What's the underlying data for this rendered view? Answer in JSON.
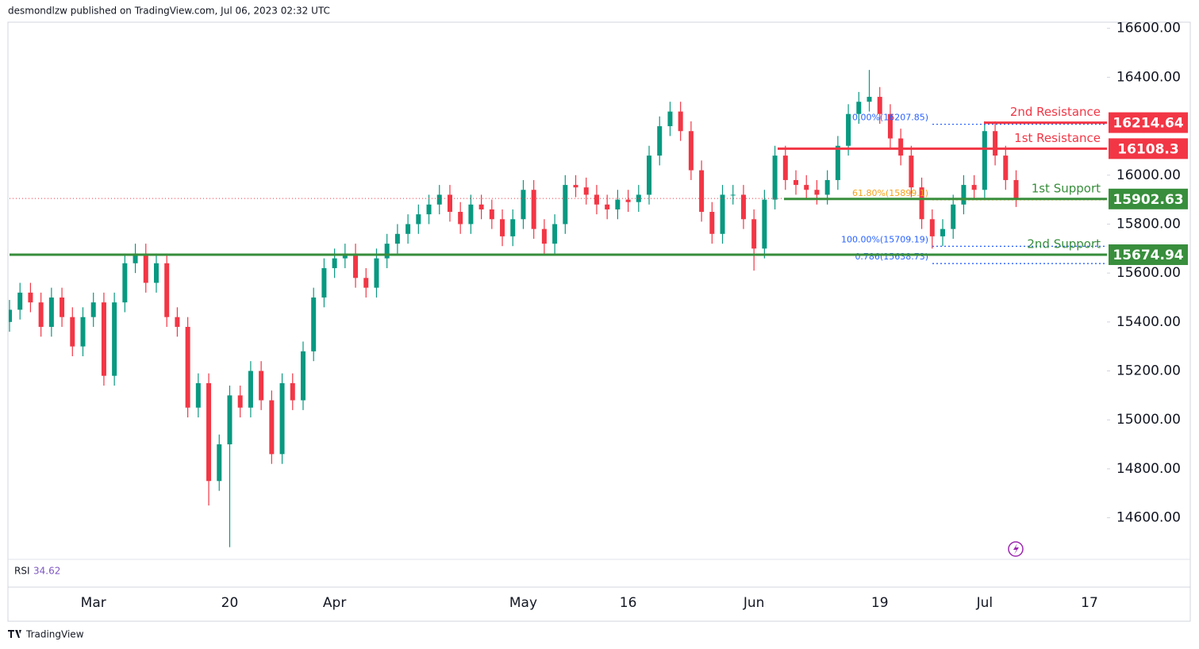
{
  "chart_data": {
    "type": "candlestick",
    "header": "desmondlzw published on TradingView.com, Jul 06, 2023 02:32 UTC",
    "footer": "TradingView",
    "rsi_label": "RSI",
    "rsi_value": 34.62,
    "up_color": "#089981",
    "down_color": "#f23645",
    "ylim": [
      14430,
      16625
    ],
    "yticks": [
      {
        "value": 16600,
        "label": "16600.00"
      },
      {
        "value": 16400,
        "label": "16400.00"
      },
      {
        "value": 16000,
        "label": "16000.00"
      },
      {
        "value": 15800,
        "label": "15800.00"
      },
      {
        "value": 15600,
        "label": "15600.00"
      },
      {
        "value": 15400,
        "label": "15400.00"
      },
      {
        "value": 15200,
        "label": "15200.00"
      },
      {
        "value": 15000,
        "label": "15000.00"
      },
      {
        "value": 14800,
        "label": "14800.00"
      },
      {
        "value": 14600,
        "label": "14600.00"
      }
    ],
    "categories": [
      null,
      null,
      null,
      null,
      null,
      null,
      null,
      null,
      "Mar",
      null,
      null,
      null,
      null,
      null,
      null,
      null,
      null,
      null,
      null,
      null,
      null,
      "20",
      null,
      null,
      null,
      null,
      null,
      null,
      null,
      null,
      null,
      "Apr",
      null,
      null,
      null,
      null,
      null,
      null,
      null,
      null,
      null,
      null,
      null,
      null,
      null,
      null,
      null,
      null,
      null,
      "May",
      null,
      null,
      null,
      null,
      null,
      null,
      null,
      null,
      null,
      "16",
      null,
      null,
      null,
      null,
      null,
      null,
      null,
      null,
      null,
      null,
      null,
      "Jun",
      null,
      null,
      null,
      null,
      null,
      null,
      null,
      null,
      null,
      null,
      null,
      "19",
      null,
      null,
      null,
      null,
      null,
      null,
      null,
      null,
      null,
      "Jul",
      null,
      null,
      null,
      null,
      null,
      null,
      null,
      null,
      null,
      "17"
    ],
    "series": [
      {
        "open": [
          15400,
          15450,
          15520,
          15480,
          15380,
          15500,
          15420,
          15300,
          15420,
          15480,
          15180,
          15480,
          15640,
          15680,
          15560,
          15640,
          15420,
          15380,
          15050,
          15150,
          14750,
          14900,
          15100,
          15050,
          15200,
          15080,
          14860,
          15150,
          15080,
          15280,
          15500,
          15620,
          15660,
          15680,
          15580,
          15540,
          15660,
          15720,
          15760,
          15800,
          15840,
          15880,
          15920,
          15850,
          15800,
          15880,
          15860,
          15820,
          15750,
          15820,
          15940,
          15780,
          15720,
          15800,
          15960,
          15950,
          15920,
          15880,
          15860,
          15900,
          15890,
          15920,
          16080,
          16200,
          16260,
          16180,
          16020,
          15850,
          15760,
          15920,
          15920,
          15820,
          15700,
          15900,
          16080,
          15980,
          15960,
          15940,
          15920,
          15980,
          16120,
          16250,
          16300,
          16320,
          16250,
          16150,
          16080,
          15950,
          15820,
          15750,
          15780,
          15880,
          15960,
          15940,
          16180,
          16080,
          15980,
          null,
          null,
          null,
          null,
          null,
          null,
          null
        ],
        "high": [
          15490,
          15560,
          15560,
          15520,
          15540,
          15540,
          15460,
          15460,
          15520,
          15520,
          15520,
          15680,
          15720,
          15720,
          15680,
          15680,
          15460,
          15420,
          15190,
          15190,
          14940,
          15140,
          15140,
          15240,
          15240,
          15120,
          15190,
          15190,
          15320,
          15540,
          15660,
          15700,
          15720,
          15720,
          15620,
          15700,
          15760,
          15800,
          15840,
          15880,
          15920,
          15960,
          15960,
          15890,
          15920,
          15920,
          15900,
          15860,
          15860,
          15980,
          15980,
          15820,
          15840,
          16000,
          16000,
          15990,
          15960,
          15920,
          15940,
          15940,
          15960,
          16120,
          16240,
          16300,
          16300,
          16220,
          16060,
          15890,
          15960,
          15960,
          15960,
          15860,
          15940,
          16120,
          16120,
          16020,
          16000,
          15980,
          16020,
          16160,
          16290,
          16340,
          16430,
          16360,
          16290,
          16190,
          16120,
          15990,
          15860,
          15820,
          15920,
          16000,
          16000,
          16220,
          16220,
          16120,
          16020,
          null,
          null,
          null,
          null,
          null,
          null,
          null
        ],
        "low": [
          15360,
          15410,
          15440,
          15340,
          15340,
          15380,
          15260,
          15260,
          15380,
          15140,
          15140,
          15440,
          15600,
          15520,
          15520,
          15380,
          15340,
          15010,
          15010,
          14650,
          14710,
          14480,
          15010,
          15010,
          15040,
          14820,
          14820,
          15040,
          15040,
          15240,
          15460,
          15580,
          15620,
          15540,
          15500,
          15500,
          15620,
          15680,
          15720,
          15760,
          15800,
          15840,
          15810,
          15760,
          15760,
          15820,
          15780,
          15710,
          15710,
          15780,
          15740,
          15680,
          15680,
          15760,
          15910,
          15880,
          15840,
          15820,
          15820,
          15850,
          15850,
          15880,
          16040,
          16160,
          16140,
          15980,
          15810,
          15720,
          15720,
          15880,
          15780,
          15610,
          15660,
          15860,
          15940,
          15920,
          15900,
          15880,
          15880,
          15940,
          16080,
          16210,
          16260,
          16210,
          16110,
          16040,
          15910,
          15780,
          15700,
          15710,
          15740,
          15840,
          15900,
          15900,
          16040,
          15940,
          15870,
          null,
          null,
          null,
          null,
          null,
          null,
          null
        ],
        "close": [
          15450,
          15520,
          15480,
          15380,
          15500,
          15420,
          15300,
          15420,
          15480,
          15180,
          15480,
          15640,
          15680,
          15560,
          15640,
          15420,
          15380,
          15050,
          15150,
          14750,
          14900,
          15100,
          15050,
          15200,
          15080,
          14860,
          15150,
          15080,
          15280,
          15500,
          15620,
          15660,
          15680,
          15580,
          15540,
          15660,
          15720,
          15760,
          15800,
          15840,
          15880,
          15920,
          15850,
          15800,
          15880,
          15860,
          15820,
          15750,
          15820,
          15940,
          15780,
          15720,
          15800,
          15960,
          15950,
          15920,
          15880,
          15860,
          15900,
          15890,
          15920,
          16080,
          16200,
          16260,
          16180,
          16020,
          15850,
          15760,
          15920,
          15920,
          15820,
          15700,
          15900,
          16080,
          15980,
          15960,
          15940,
          15920,
          15980,
          16120,
          16250,
          16300,
          16320,
          16250,
          16150,
          16080,
          15950,
          15820,
          15750,
          15780,
          15880,
          15960,
          15940,
          16180,
          16080,
          15980,
          15905,
          null,
          null,
          null,
          null,
          null,
          null,
          null
        ]
      }
    ],
    "levels": [
      {
        "name": "2nd Resistance",
        "value": 16214.64,
        "color": "#f23645"
      },
      {
        "name": "1st Resistance",
        "value": 16108.3,
        "color": "#f23645"
      },
      {
        "name": "1st Support",
        "value": 15902.63,
        "color": "#388e3c"
      },
      {
        "name": "2nd Support",
        "value": 15674.94,
        "color": "#388e3c"
      }
    ],
    "fib": [
      {
        "label": "0.00%(16207.85)",
        "value": 16207.85,
        "color": "#2962ff"
      },
      {
        "label": "61.80%(15899.1)",
        "value": 15899.1,
        "color": "#f7a21b"
      },
      {
        "label": "100.00%(15709.19)",
        "value": 15709.19,
        "color": "#2962ff"
      },
      {
        "label": "0.786(15638.73)",
        "value": 15638.73,
        "color": "#2962ff"
      }
    ]
  }
}
